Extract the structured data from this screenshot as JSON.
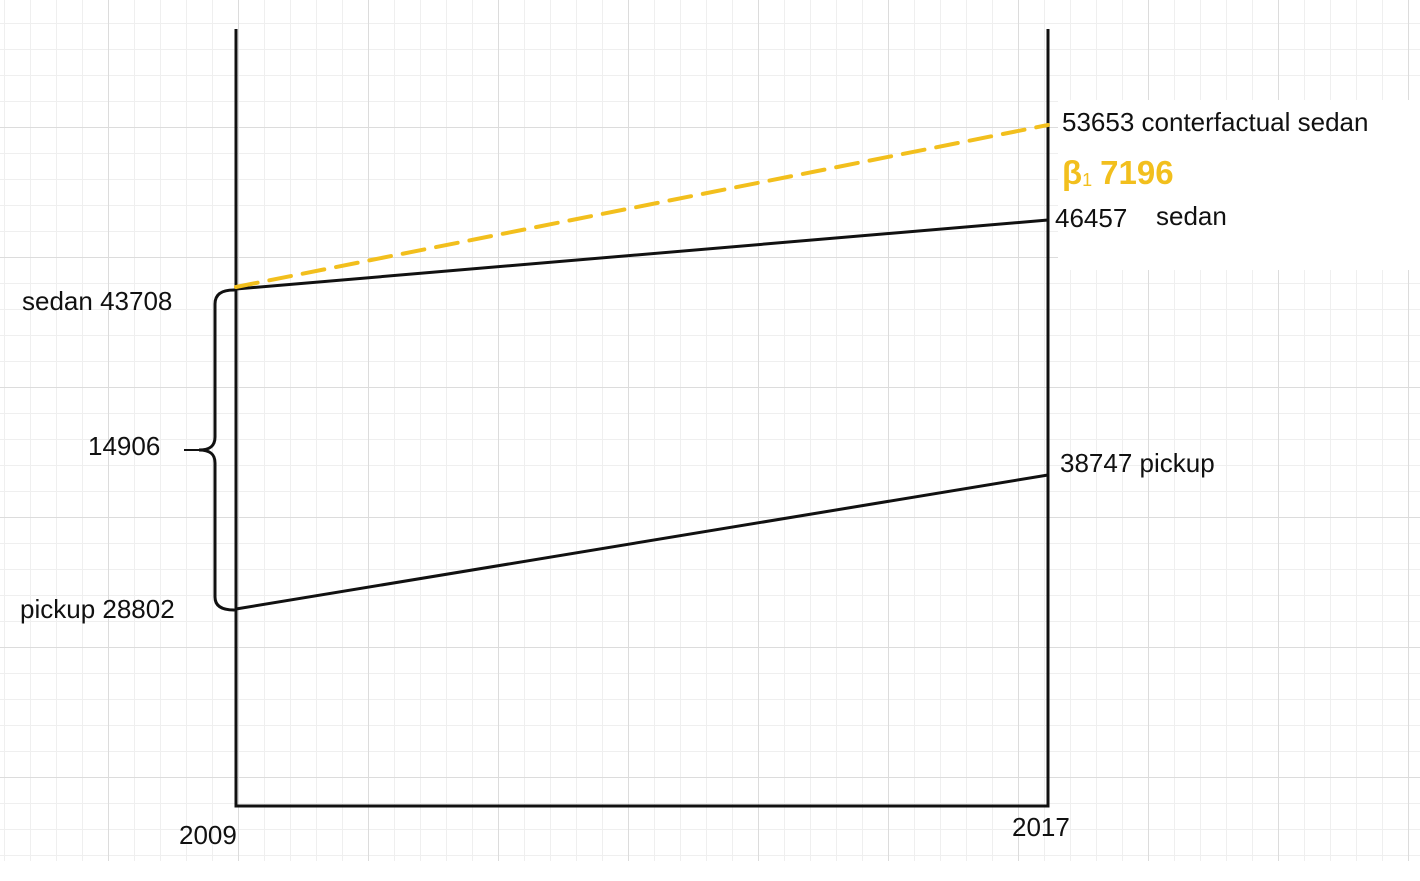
{
  "chart_data": {
    "type": "line",
    "x": [
      "2009",
      "2017"
    ],
    "series": [
      {
        "name": "sedan",
        "values": [
          43708,
          46457
        ],
        "style": "solid",
        "color": "#111111"
      },
      {
        "name": "pickup",
        "values": [
          28802,
          38747
        ],
        "style": "solid",
        "color": "#111111"
      },
      {
        "name": "conterfactual sedan",
        "values": [
          43708,
          53653
        ],
        "style": "dashed",
        "color": "#f2bf1d"
      }
    ],
    "ylim": [
      20000,
      55000
    ],
    "grid": true,
    "labels": {
      "x_start": "2009",
      "x_end": "2017",
      "sedan_start": "sedan 43708",
      "pickup_start": "pickup 28802",
      "gap": "14906",
      "sedan_end_value": "46457",
      "sedan_end_name": "sedan",
      "pickup_end": "38747 pickup",
      "counterfactual_end": "53653 conterfactual sedan",
      "beta_symbol": "β",
      "beta_subscript": "1",
      "beta_value": "7196"
    },
    "accent_color": "#f2bf1d"
  }
}
